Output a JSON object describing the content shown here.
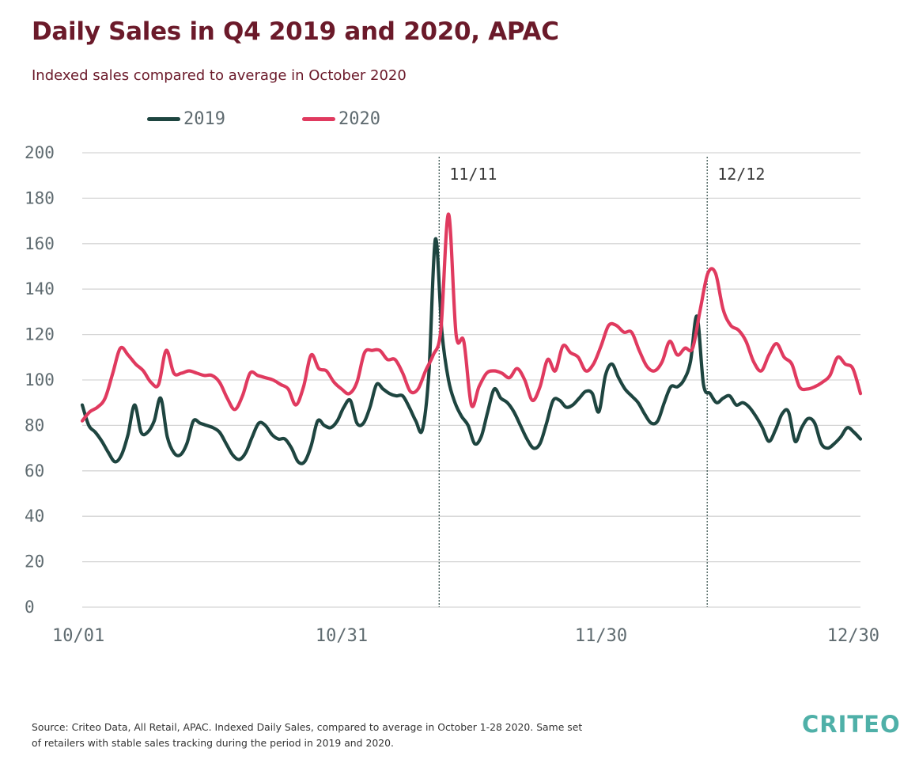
{
  "title": "Daily Sales in Q4 2019 and 2020, APAC",
  "subtitle": "Indexed sales compared to average in October 2020",
  "footer": {
    "line1": "Source: Criteo Data, All Retail, APAC. Indexed Daily Sales, compared to average in October 1-28 2020. Same set",
    "line2": "of retailers with stable sales tracking during the period in 2019 and 2020."
  },
  "logo": "CRITEO",
  "colors": {
    "s2019": "#1e4540",
    "s2020": "#e03a5f",
    "grid": "#d5d5d5",
    "axis_text": "#5f6b70"
  },
  "chart_data": {
    "type": "line",
    "xlabel": "",
    "ylabel": "",
    "ylim": [
      0,
      200
    ],
    "yticks": [
      0,
      20,
      40,
      60,
      80,
      100,
      120,
      140,
      160,
      180,
      200
    ],
    "xticks": [
      "10/01",
      "10/31",
      "11/30",
      "12/30"
    ],
    "grid": true,
    "legend_position": "top-left",
    "annotations": [
      "11/11",
      "12/12"
    ],
    "series": [
      {
        "name": "2019",
        "values": [
          89,
          80,
          77,
          73,
          68,
          64,
          67,
          76,
          89,
          77,
          77,
          82,
          92,
          75,
          68,
          67,
          72,
          82,
          81,
          80,
          79,
          77,
          72,
          67,
          65,
          68,
          75,
          81,
          80,
          76,
          74,
          74,
          70,
          64,
          64,
          71,
          82,
          80,
          79,
          82,
          88,
          91,
          81,
          81,
          88,
          98,
          96,
          94,
          93,
          93,
          88,
          82,
          78,
          103,
          162,
          121,
          100,
          90,
          84,
          80,
          72,
          75,
          86,
          96,
          92,
          90,
          86,
          80,
          74,
          70,
          72,
          81,
          91,
          91,
          88,
          89,
          92,
          95,
          94,
          86,
          102,
          107,
          101,
          96,
          93,
          90,
          85,
          81,
          82,
          90,
          97,
          97,
          100,
          108,
          128,
          98,
          94,
          90,
          92,
          93,
          89,
          90,
          88,
          84,
          79,
          73,
          78,
          85,
          86,
          73,
          79,
          83,
          81,
          72,
          70,
          72,
          75,
          79,
          77,
          74
        ]
      },
      {
        "name": "2020",
        "values": [
          82,
          86,
          88,
          92,
          103,
          114,
          111,
          107,
          104,
          99,
          98,
          113,
          103,
          103,
          104,
          103,
          102,
          102,
          99,
          92,
          87,
          93,
          103,
          102,
          101,
          100,
          98,
          96,
          89,
          97,
          111,
          105,
          104,
          99,
          96,
          94,
          99,
          112,
          113,
          113,
          109,
          109,
          103,
          95,
          96,
          104,
          111,
          122,
          173,
          120,
          117,
          89,
          97,
          103,
          104,
          103,
          101,
          105,
          100,
          91,
          97,
          109,
          104,
          115,
          112,
          110,
          104,
          107,
          115,
          124,
          124,
          121,
          121,
          113,
          106,
          104,
          108,
          117,
          111,
          114,
          114,
          131,
          147,
          147,
          131,
          124,
          122,
          117,
          108,
          104,
          111,
          116,
          110,
          107,
          97,
          96,
          97,
          99,
          102,
          110,
          107,
          105,
          94
        ]
      }
    ]
  }
}
